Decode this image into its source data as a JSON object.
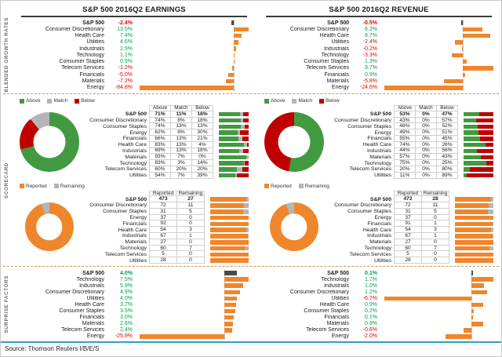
{
  "header": {
    "earnings_title": "S&P 500 2016Q2 EARNINGS",
    "revenue_title": "S&P 500 2016Q2 REVENUE"
  },
  "section_labels": {
    "growth": "BLENDED GROWTH RATES",
    "scorecard": "SCORECARD",
    "surprise": "SURPRISE FACTORS"
  },
  "footer": {
    "source": "Source: Thomson Reuters I/B/E/S"
  },
  "colors": {
    "orange": "#F0862B",
    "dark_bar": "#4A4A4A",
    "above_green": "#429A40",
    "match_gray": "#B5B5B5",
    "below_red": "#C00000",
    "positive_text": "#00A050",
    "negative_text": "#E60000",
    "footer_rule": "#2EA3B7"
  },
  "chart_data": [
    {
      "id": "earnings-growth",
      "panel": "earnings",
      "type": "bar",
      "unit": "%",
      "rows": [
        {
          "label": "S&P 500",
          "value": -2.4,
          "emphasis": true
        },
        {
          "label": "Consumer Discretionary",
          "value": 13.5
        },
        {
          "label": "Health Care",
          "value": 7.4
        },
        {
          "label": "Utilities",
          "value": 4.6
        },
        {
          "label": "Industrials",
          "value": 2.5
        },
        {
          "label": "Technology",
          "value": 1.1
        },
        {
          "label": "Consumer Staples",
          "value": 0.5
        },
        {
          "label": "Telecom Services",
          "value": -1.2
        },
        {
          "label": "Financials",
          "value": -5.0
        },
        {
          "label": "Materials",
          "value": -7.2
        },
        {
          "label": "Energy",
          "value": -84.8
        }
      ]
    },
    {
      "id": "revenue-growth",
      "panel": "revenue",
      "type": "bar",
      "unit": "%",
      "rows": [
        {
          "label": "S&P 500",
          "value": -0.5,
          "emphasis": true
        },
        {
          "label": "Consumer Discretionary",
          "value": 6.2
        },
        {
          "label": "Health Care",
          "value": 8.7
        },
        {
          "label": "Utilities",
          "value": -2.4
        },
        {
          "label": "Industrials",
          "value": -0.2
        },
        {
          "label": "Technology",
          "value": -3.3
        },
        {
          "label": "Consumer Staples",
          "value": 1.3
        },
        {
          "label": "Telecom Services",
          "value": 9.7
        },
        {
          "label": "Financials",
          "value": 0.9
        },
        {
          "label": "Materials",
          "value": -5.8
        },
        {
          "label": "Energy",
          "value": -24.6
        }
      ]
    },
    {
      "id": "earnings-scorecard",
      "panel": "earnings",
      "type": "table",
      "legend": [
        "Above",
        "Match",
        "Below"
      ],
      "headers": [
        "Above",
        "Match",
        "Below"
      ],
      "donut": {
        "type": "pie",
        "labels": [
          "Above",
          "Match",
          "Below"
        ],
        "values": [
          71,
          11,
          18
        ]
      },
      "rows": [
        {
          "label": "S&P 500",
          "values": [
            71,
            11,
            18
          ],
          "emphasis": true
        },
        {
          "label": "Consumer Discretionary",
          "values": [
            74,
            8,
            18
          ]
        },
        {
          "label": "Consumer Staples",
          "values": [
            74,
            13,
            13
          ]
        },
        {
          "label": "Energy",
          "values": [
            62,
            8,
            30
          ]
        },
        {
          "label": "Financials",
          "values": [
            66,
            13,
            21
          ]
        },
        {
          "label": "Health Care",
          "values": [
            83,
            13,
            4
          ]
        },
        {
          "label": "Industrials",
          "values": [
            69,
            13,
            18
          ]
        },
        {
          "label": "Materials",
          "values": [
            93,
            7,
            0
          ]
        },
        {
          "label": "Technology",
          "values": [
            83,
            3,
            14
          ]
        },
        {
          "label": "Telecom Services",
          "values": [
            60,
            20,
            20
          ]
        },
        {
          "label": "Utilities",
          "values": [
            54,
            7,
            39
          ]
        }
      ]
    },
    {
      "id": "revenue-scorecard",
      "panel": "revenue",
      "type": "table",
      "legend": [
        "Above",
        "Match",
        "Below"
      ],
      "headers": [
        "Above",
        "Match",
        "Below"
      ],
      "donut": {
        "type": "pie",
        "labels": [
          "Above",
          "Match",
          "Below"
        ],
        "values": [
          53,
          0,
          47
        ]
      },
      "rows": [
        {
          "label": "S&P 500",
          "values": [
            53,
            0,
            47
          ],
          "emphasis": true
        },
        {
          "label": "Consumer Discretionary",
          "values": [
            43,
            0,
            57
          ]
        },
        {
          "label": "Consumer Staples",
          "values": [
            48,
            0,
            52
          ]
        },
        {
          "label": "Energy",
          "values": [
            49,
            0,
            51
          ]
        },
        {
          "label": "Financials",
          "values": [
            55,
            0,
            45
          ]
        },
        {
          "label": "Health Care",
          "values": [
            74,
            0,
            26
          ]
        },
        {
          "label": "Industrials",
          "values": [
            44,
            0,
            56
          ]
        },
        {
          "label": "Materials",
          "values": [
            57,
            0,
            43
          ]
        },
        {
          "label": "Technology",
          "values": [
            75,
            0,
            25
          ]
        },
        {
          "label": "Telecom Services",
          "values": [
            20,
            0,
            80
          ]
        },
        {
          "label": "Utilities",
          "values": [
            11,
            0,
            89
          ]
        }
      ]
    },
    {
      "id": "earnings-reported",
      "panel": "earnings",
      "type": "table",
      "legend": [
        "Reported",
        "Remaining"
      ],
      "headers": [
        "Reported",
        "Remaining"
      ],
      "donut": {
        "type": "pie",
        "labels": [
          "Reported",
          "Remaining"
        ],
        "values": [
          473,
          27
        ]
      },
      "rows": [
        {
          "label": "S&P 500",
          "values": [
            473,
            27
          ],
          "emphasis": true
        },
        {
          "label": "Consumer Discretionary",
          "values": [
            72,
            11
          ]
        },
        {
          "label": "Consumer Staples",
          "values": [
            31,
            5
          ]
        },
        {
          "label": "Energy",
          "values": [
            37,
            0
          ]
        },
        {
          "label": "Financials",
          "values": [
            92,
            0
          ]
        },
        {
          "label": "Health Care",
          "values": [
            54,
            3
          ]
        },
        {
          "label": "Industrials",
          "values": [
            67,
            1
          ]
        },
        {
          "label": "Materials",
          "values": [
            27,
            0
          ]
        },
        {
          "label": "Technology",
          "values": [
            60,
            7
          ]
        },
        {
          "label": "Telecom Services",
          "values": [
            5,
            0
          ]
        },
        {
          "label": "Utilities",
          "values": [
            28,
            0
          ]
        }
      ]
    },
    {
      "id": "revenue-reported",
      "panel": "revenue",
      "type": "table",
      "legend": [
        "Reported",
        "Remaining"
      ],
      "headers": [
        "Reported",
        "Remaining"
      ],
      "donut": {
        "type": "pie",
        "labels": [
          "Reported",
          "Remaining"
        ],
        "values": [
          472,
          28
        ]
      },
      "rows": [
        {
          "label": "S&P 500",
          "values": [
            472,
            28
          ],
          "emphasis": true
        },
        {
          "label": "Consumer Discretionary",
          "values": [
            72,
            11
          ]
        },
        {
          "label": "Consumer Staples",
          "values": [
            31,
            5
          ]
        },
        {
          "label": "Energy",
          "values": [
            37,
            0
          ]
        },
        {
          "label": "Financials",
          "values": [
            91,
            1
          ]
        },
        {
          "label": "Health Care",
          "values": [
            54,
            3
          ]
        },
        {
          "label": "Industrials",
          "values": [
            67,
            1
          ]
        },
        {
          "label": "Materials",
          "values": [
            27,
            0
          ]
        },
        {
          "label": "Technology",
          "values": [
            60,
            7
          ]
        },
        {
          "label": "Telecom Services",
          "values": [
            5,
            0
          ]
        },
        {
          "label": "Utilities",
          "values": [
            28,
            0
          ]
        }
      ]
    },
    {
      "id": "earnings-surprise",
      "panel": "earnings",
      "type": "bar",
      "unit": "%",
      "rows": [
        {
          "label": "S&P 500",
          "value": 4.0,
          "emphasis": true
        },
        {
          "label": "Technology",
          "value": 7.5
        },
        {
          "label": "Industrials",
          "value": 5.9
        },
        {
          "label": "Consumer Discretionary",
          "value": 4.9
        },
        {
          "label": "Utilities",
          "value": 4.0
        },
        {
          "label": "Health Care",
          "value": 3.7
        },
        {
          "label": "Consumer Staples",
          "value": 3.5
        },
        {
          "label": "Financials",
          "value": 3.0
        },
        {
          "label": "Materials",
          "value": 2.6
        },
        {
          "label": "Telecom Services",
          "value": 2.4
        },
        {
          "label": "Energy",
          "value": -25.9
        }
      ]
    },
    {
      "id": "revenue-surprise",
      "panel": "revenue",
      "type": "bar",
      "unit": "%",
      "rows": [
        {
          "label": "S&P 500",
          "value": 0.1,
          "emphasis": true
        },
        {
          "label": "Technology",
          "value": 1.7
        },
        {
          "label": "Industrials",
          "value": 1.0
        },
        {
          "label": "Consumer Discretionary",
          "value": 1.2
        },
        {
          "label": "Utilities",
          "value": -6.7
        },
        {
          "label": "Health Care",
          "value": 0.9
        },
        {
          "label": "Consumer Staples",
          "value": 0.2
        },
        {
          "label": "Financials",
          "value": 0.1
        },
        {
          "label": "Materials",
          "value": 0.9
        },
        {
          "label": "Telecom Services",
          "value": -0.6
        },
        {
          "label": "Energy",
          "value": -2.0
        }
      ]
    }
  ]
}
